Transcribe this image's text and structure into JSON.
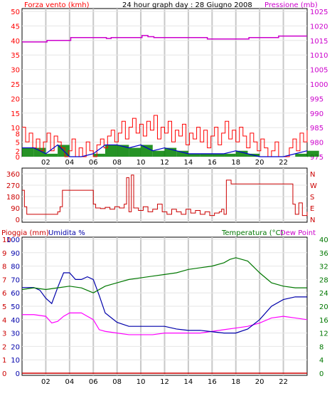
{
  "title": "24 hour graph day : 28 Giugno 2008",
  "colors": {
    "wind": "#ff0000",
    "wind_gust": "#ff0000",
    "wind_avg_bars": "#008000",
    "wind_line": "#0000cc",
    "pressure": "#cc00cc",
    "direction": "#cc0000",
    "temperature": "#007700",
    "humidity": "#0000aa",
    "dew_point": "#ff00ff",
    "rain": "#cc0000",
    "grid": "#c8c8c8"
  },
  "chart_data": [
    {
      "type": "line",
      "name": "wind-pressure",
      "ylabel_left": "Forza vento (kmh)",
      "ylabel_right": "Pressione (mb)",
      "left_ticks": [
        "50",
        "45",
        "40",
        "35",
        "30",
        "25",
        "20",
        "15",
        "10",
        "8",
        "5",
        "2",
        "0"
      ],
      "right_ticks": [
        "1025",
        "1020",
        "1015",
        "1010",
        "1005",
        "1000",
        "995",
        "990",
        "985",
        "980",
        "975"
      ],
      "x_ticks": [
        "02",
        "04",
        "06",
        "08",
        "10",
        "12",
        "14",
        "16",
        "18",
        "20",
        "22"
      ],
      "xlim": [
        0,
        24
      ],
      "ylim_left": [
        0,
        50
      ],
      "ylim_right": [
        975,
        1025
      ],
      "pressure": {
        "x": [
          0,
          2,
          2.1,
          4,
          4.1,
          7,
          7.1,
          7.4,
          7.5,
          10,
          10.1,
          10.5,
          10.6,
          11,
          11.1,
          15.5,
          15.6,
          19,
          19.1,
          21.5,
          21.6,
          24
        ],
        "y": [
          1014.5,
          1014.5,
          1015,
          1015,
          1016,
          1016,
          1015.7,
          1015.7,
          1016,
          1016,
          1016.7,
          1016.7,
          1016.3,
          1016.3,
          1016,
          1016,
          1015.5,
          1015.5,
          1016,
          1016,
          1016.5,
          1016.5
        ]
      },
      "wind_gust": {
        "x": [
          0,
          0.3,
          0.6,
          0.9,
          1.2,
          1.5,
          1.8,
          2.1,
          2.4,
          2.7,
          3.0,
          3.3,
          3.6,
          3.9,
          4.2,
          4.5,
          4.8,
          5.1,
          5.4,
          5.7,
          6.0,
          6.3,
          6.6,
          6.9,
          7.2,
          7.5,
          7.8,
          8.1,
          8.4,
          8.7,
          9.0,
          9.3,
          9.6,
          9.9,
          10.2,
          10.5,
          10.8,
          11.1,
          11.4,
          11.7,
          12.0,
          12.3,
          12.6,
          12.9,
          13.2,
          13.5,
          13.8,
          14.1,
          14.4,
          14.7,
          15.0,
          15.3,
          15.6,
          15.9,
          16.2,
          16.5,
          16.8,
          17.1,
          17.4,
          17.7,
          18.0,
          18.3,
          18.6,
          18.9,
          19.2,
          19.5,
          19.8,
          20.1,
          20.4,
          20.7,
          21.0,
          21.3,
          21.6,
          21.9,
          22.2,
          22.5,
          22.8,
          23.1,
          23.4,
          23.7,
          24.0
        ],
        "y": [
          10,
          5,
          8,
          3,
          6,
          2,
          5,
          8,
          2,
          7,
          5,
          3,
          0,
          2,
          6,
          0,
          3,
          0,
          5,
          2,
          0,
          4,
          6,
          3,
          7,
          9,
          5,
          8,
          12,
          6,
          10,
          13,
          8,
          11,
          7,
          12,
          9,
          14,
          6,
          10,
          8,
          12,
          5,
          9,
          7,
          11,
          4,
          8,
          6,
          10,
          5,
          9,
          3,
          7,
          10,
          4,
          8,
          12,
          6,
          9,
          5,
          10,
          7,
          3,
          8,
          5,
          2,
          6,
          3,
          0,
          2,
          5,
          0,
          0,
          0,
          3,
          6,
          2,
          8,
          5,
          9
        ]
      },
      "wind_avg": {
        "x": [
          0,
          1,
          2,
          3,
          4,
          5,
          6,
          7,
          8,
          9,
          10,
          11,
          12,
          13,
          14,
          15,
          16,
          17,
          18,
          19,
          20,
          21,
          22,
          23,
          24
        ],
        "y": [
          3,
          3,
          1,
          4,
          0,
          0,
          1,
          4,
          4,
          3,
          4,
          2,
          3,
          2,
          1,
          1,
          1,
          1,
          2,
          1,
          0,
          0,
          0,
          1,
          2
        ]
      }
    },
    {
      "type": "line",
      "name": "wind-direction",
      "left_ticks": [
        "360",
        "270",
        "180",
        "90",
        "0"
      ],
      "right_ticks": [
        "N",
        "W",
        "S",
        "E",
        "N"
      ],
      "xlim": [
        0,
        24
      ],
      "ylim": [
        0,
        360
      ],
      "x": [
        0,
        0.2,
        0.4,
        2.8,
        3.0,
        3.2,
        3.4,
        5.8,
        6.0,
        6.2,
        6.6,
        7.0,
        7.4,
        7.8,
        8.2,
        8.6,
        8.8,
        9.0,
        9.2,
        9.4,
        9.8,
        10.2,
        10.6,
        11.0,
        11.4,
        11.8,
        12.2,
        12.6,
        13.0,
        13.4,
        13.8,
        14.2,
        14.6,
        15.0,
        15.4,
        15.8,
        16.2,
        16.6,
        16.8,
        17.0,
        17.2,
        17.6,
        18.0,
        22.5,
        22.8,
        23.0,
        23.3,
        23.6,
        24.0
      ],
      "y": [
        230,
        100,
        40,
        40,
        60,
        100,
        230,
        230,
        120,
        90,
        85,
        95,
        80,
        100,
        90,
        120,
        330,
        60,
        350,
        90,
        70,
        100,
        60,
        80,
        120,
        60,
        40,
        80,
        60,
        40,
        80,
        50,
        70,
        40,
        60,
        30,
        50,
        60,
        80,
        40,
        310,
        280,
        280,
        280,
        120,
        40,
        130,
        30,
        60
      ]
    },
    {
      "type": "line",
      "name": "humidity-temperature",
      "ylabel_left_a": "Pioggia (mm)",
      "ylabel_left_b": "Umidita %",
      "ylabel_right_a": "Temperatura (°C)",
      "ylabel_right_b": "Dew Point",
      "rain_ticks": [
        "10",
        "9",
        "8",
        "7",
        "6",
        "5",
        "4",
        "3",
        "2",
        "1",
        "0"
      ],
      "humidity_ticks": [
        "100",
        "90",
        "80",
        "70",
        "60",
        "50",
        "40",
        "30",
        "20",
        "10",
        "0"
      ],
      "temp_ticks": [
        "40",
        "36",
        "32",
        "28",
        "24",
        "20",
        "16",
        "12",
        "8",
        "4",
        "0"
      ],
      "x_ticks": [
        "02",
        "04",
        "06",
        "08",
        "10",
        "12",
        "14",
        "16",
        "18",
        "20",
        "22"
      ],
      "xlim": [
        0,
        24
      ],
      "ylim_rain": [
        0,
        10
      ],
      "ylim_humidity": [
        0,
        100
      ],
      "ylim_temp": [
        0,
        40
      ],
      "temperature": {
        "x": [
          0,
          1,
          2,
          3,
          4,
          5,
          6,
          7,
          8,
          9,
          10,
          11,
          12,
          13,
          14,
          15,
          16,
          17,
          17.5,
          18,
          18.5,
          19,
          20,
          21,
          22,
          23,
          24
        ],
        "y": [
          25,
          25.5,
          25,
          25.5,
          26,
          25.5,
          24,
          26,
          27,
          28,
          28.5,
          29,
          29.5,
          30,
          31,
          31.5,
          32,
          33,
          34,
          34.5,
          34,
          33.5,
          30,
          27,
          26,
          25.5,
          25.5
        ]
      },
      "humidity": {
        "x": [
          0,
          1,
          1.5,
          2,
          2.5,
          3,
          3.5,
          4,
          4.5,
          5,
          5.5,
          6,
          6.5,
          7,
          8,
          9,
          10,
          11,
          12,
          13,
          14,
          15,
          16,
          17,
          18,
          19,
          20,
          21,
          22,
          23,
          24
        ],
        "y": [
          64,
          64,
          62,
          56,
          52,
          64,
          75,
          75,
          70,
          70,
          72,
          70,
          58,
          45,
          38,
          35,
          35,
          35,
          35,
          33,
          32,
          32,
          31,
          30,
          30,
          33,
          40,
          50,
          55,
          57,
          57
        ]
      },
      "dew_point": {
        "x": [
          0,
          1,
          2,
          2.5,
          3,
          3.5,
          4,
          5,
          5.5,
          6,
          6.5,
          7,
          8,
          9,
          10,
          11,
          12,
          13,
          14,
          15,
          16,
          17,
          18,
          19,
          20,
          21,
          22,
          23,
          24
        ],
        "y": [
          17.5,
          17.5,
          17,
          15,
          15.5,
          17,
          18,
          18,
          17,
          16,
          13,
          12.5,
          12,
          11.5,
          11.5,
          11.5,
          12,
          12,
          12,
          12,
          12.5,
          13,
          13.5,
          14,
          15,
          16.5,
          17,
          16.5,
          16
        ]
      },
      "rain": {
        "x": [
          0,
          24
        ],
        "y": [
          0,
          0
        ]
      }
    }
  ]
}
